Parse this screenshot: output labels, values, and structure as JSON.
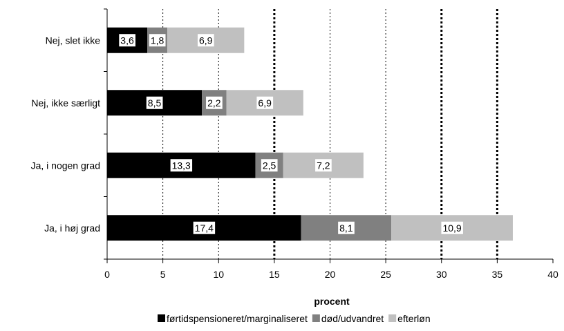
{
  "chart_data": {
    "type": "bar",
    "orientation": "horizontal",
    "stacked": true,
    "categories": [
      "Nej, slet ikke",
      "Nej, ikke særligt",
      "Ja, i nogen grad",
      "Ja, i høj grad"
    ],
    "series": [
      {
        "name": "førtidspensioneret/marginaliseret",
        "values": [
          3.6,
          8.5,
          13.3,
          17.4
        ],
        "color": "#000000"
      },
      {
        "name": "død/udvandret",
        "values": [
          1.8,
          2.2,
          2.5,
          8.1
        ],
        "color": "#808080"
      },
      {
        "name": "efterløn",
        "values": [
          6.9,
          6.9,
          7.2,
          10.9
        ],
        "color": "#c0c0c0"
      }
    ],
    "data_labels": [
      [
        "3,6",
        "8,5",
        "13,3",
        "17,4"
      ],
      [
        "1,8",
        "2,2",
        "2,5",
        "8,1"
      ],
      [
        "6,9",
        "6,9",
        "7,2",
        "10,9"
      ]
    ],
    "xlabel": "procent",
    "ylabel": "",
    "xlim": [
      0,
      40
    ],
    "xticks": [
      0,
      5,
      10,
      15,
      20,
      25,
      30,
      35,
      40
    ],
    "gridlines": [
      {
        "x": 5,
        "style": "dotted-thin"
      },
      {
        "x": 10,
        "style": "dotted-thin"
      },
      {
        "x": 15,
        "style": "dotted-thick"
      },
      {
        "x": 20,
        "style": "dotted-thin"
      },
      {
        "x": 25,
        "style": "dotted-thin"
      },
      {
        "x": 30,
        "style": "dotted-thick"
      },
      {
        "x": 35,
        "style": "dotted-thick"
      }
    ],
    "legend_position": "bottom"
  }
}
